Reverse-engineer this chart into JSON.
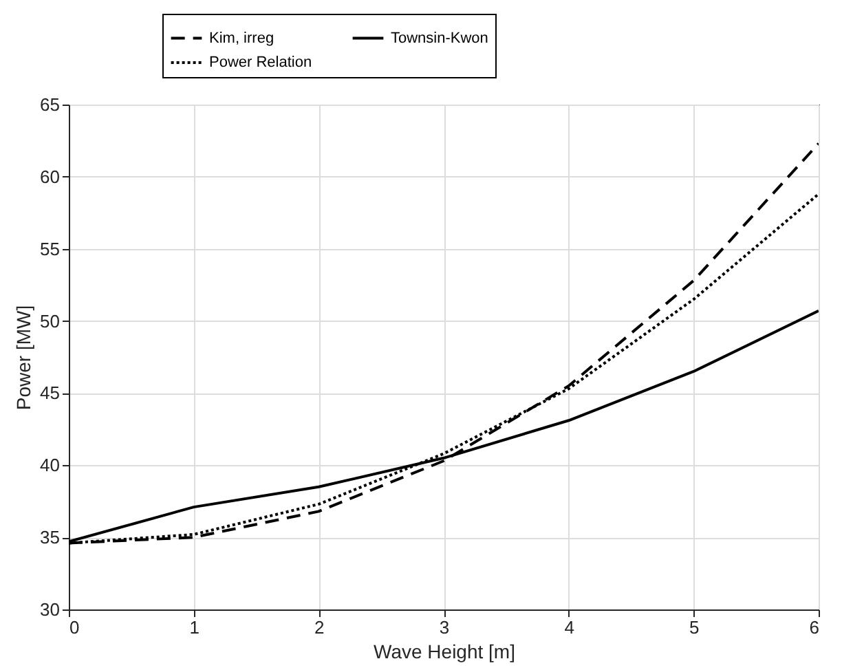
{
  "chart_data": {
    "type": "line",
    "xlabel": "Wave Height [m]",
    "ylabel": "Power [MW]",
    "x": [
      0,
      1,
      2,
      3,
      4,
      5,
      6
    ],
    "series": [
      {
        "name": "Kim, irreg",
        "color": "#000000",
        "line_style": "dashed",
        "values": [
          34.6,
          35.0,
          36.8,
          40.3,
          45.5,
          52.8,
          62.3
        ]
      },
      {
        "name": "Townsin-Kwon",
        "color": "#000000",
        "line_style": "solid",
        "values": [
          34.7,
          37.1,
          38.5,
          40.5,
          43.1,
          46.5,
          50.7
        ]
      },
      {
        "name": "Power Relation",
        "color": "#000000",
        "line_style": "dotted",
        "values": [
          34.6,
          35.2,
          37.3,
          40.8,
          45.3,
          51.5,
          58.8
        ]
      }
    ],
    "xlim": [
      0,
      6
    ],
    "xticks": [
      0,
      1,
      2,
      3,
      4,
      5,
      6
    ],
    "ylim": [
      30,
      65
    ],
    "yticks": [
      30,
      35,
      40,
      45,
      50,
      55,
      60,
      65
    ],
    "grid": true,
    "legend": "top",
    "marker": "none"
  }
}
